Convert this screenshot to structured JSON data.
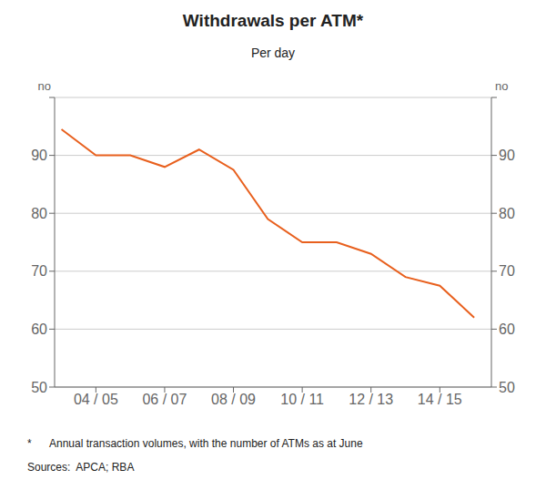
{
  "chart_data": {
    "type": "line",
    "title": "Withdrawals per ATM*",
    "subtitle": "Per day",
    "ylabel": "no",
    "y2label": "no",
    "annotations": [
      "*      Annual transaction volumes, with the number of ATMs as at June",
      "Sources:  APCA; RBA"
    ],
    "x": [
      2003,
      2004,
      2005,
      2006,
      2007,
      2008,
      2009,
      2010,
      2011,
      2012,
      2013,
      2014,
      2015
    ],
    "series": [
      {
        "name": "Withdrawals per ATM",
        "color": "#e8601e",
        "values": [
          94.5,
          90.0,
          90.0,
          88.0,
          91.0,
          87.5,
          79.0,
          75.0,
          75.0,
          73.0,
          69.0,
          67.5,
          62.0
        ]
      }
    ],
    "xlim": [
      2002.8,
      2015.5
    ],
    "xticks": [
      {
        "value": 2004,
        "label": "04 / 05"
      },
      {
        "value": 2006,
        "label": "06 / 07"
      },
      {
        "value": 2008,
        "label": "08 / 09"
      },
      {
        "value": 2010,
        "label": "10 / 11"
      },
      {
        "value": 2012,
        "label": "12 / 13"
      },
      {
        "value": 2014,
        "label": "14 / 15"
      }
    ],
    "ylim": [
      50,
      100
    ],
    "yticks": [
      50,
      60,
      70,
      80,
      90,
      {
        "value": 100,
        "label": null
      }
    ],
    "y2lim": [
      50,
      100
    ],
    "y2ticks": [
      50,
      60,
      70,
      80,
      90,
      {
        "value": 100,
        "label": null
      }
    ],
    "grid": "y"
  }
}
